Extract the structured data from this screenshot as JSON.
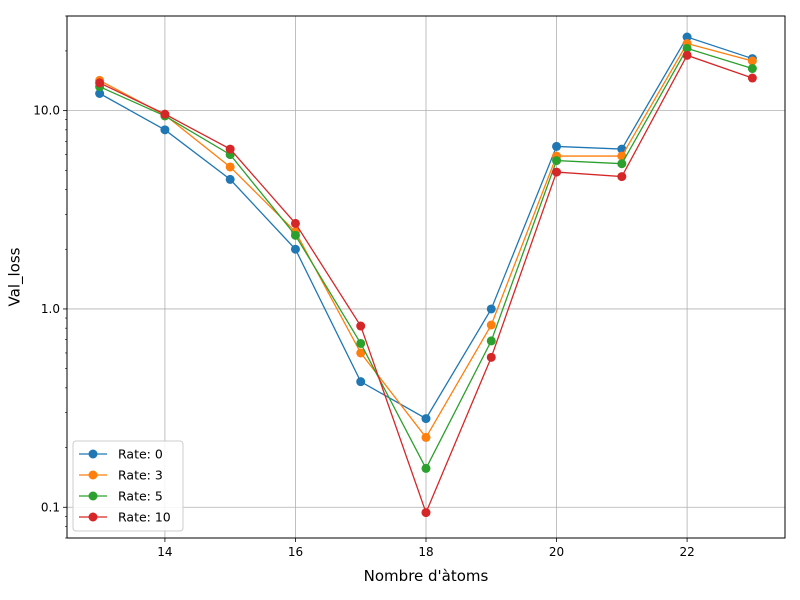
{
  "chart_data": {
    "type": "line",
    "title": "",
    "xlabel": "Nombre d'àtoms",
    "ylabel": "Val_loss",
    "x": [
      13,
      14,
      15,
      16,
      17,
      18,
      19,
      20,
      21,
      22,
      23
    ],
    "xlim": [
      12.5,
      23.5
    ],
    "ylim": [
      0.07,
      30
    ],
    "yscale": "log",
    "grid": true,
    "legend_position": "lower-left",
    "x_ticks": [
      14,
      16,
      18,
      20,
      22
    ],
    "x_tick_labels": [
      "14",
      "16",
      "18",
      "20",
      "22"
    ],
    "y_ticks": [
      0.1,
      1.0,
      10.0
    ],
    "y_tick_labels": [
      "0.1",
      "1.0",
      "10.0"
    ],
    "series": [
      {
        "name": "Rate: 0",
        "color": "#1f77b4",
        "values": [
          12.2,
          8.0,
          4.5,
          2.0,
          0.43,
          0.28,
          1.0,
          6.6,
          6.4,
          23.5,
          18.3
        ]
      },
      {
        "name": "Rate: 3",
        "color": "#ff7f0e",
        "values": [
          14.2,
          9.5,
          5.2,
          2.45,
          0.6,
          0.225,
          0.83,
          5.9,
          5.9,
          21.8,
          17.8
        ]
      },
      {
        "name": "Rate: 5",
        "color": "#2ca02c",
        "values": [
          13.2,
          9.4,
          6.0,
          2.35,
          0.67,
          0.157,
          0.69,
          5.6,
          5.4,
          20.6,
          16.3
        ]
      },
      {
        "name": "Rate: 10",
        "color": "#d62728",
        "values": [
          13.8,
          9.6,
          6.4,
          2.7,
          0.82,
          0.094,
          0.57,
          4.9,
          4.65,
          19.0,
          14.6
        ]
      }
    ]
  }
}
